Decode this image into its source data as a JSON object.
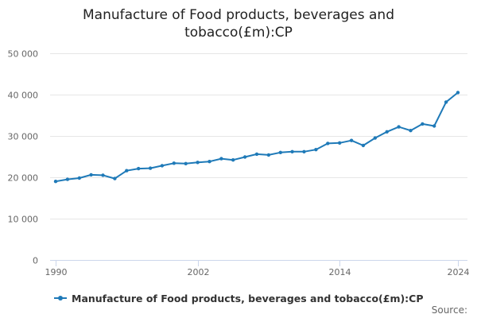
{
  "chart_data": {
    "type": "line",
    "title": "Manufacture of Food products, beverages and tobacco(£m):CP",
    "xlabel": "",
    "ylabel": "",
    "xlim": [
      1990,
      2024
    ],
    "ylim": [
      0,
      50000
    ],
    "x_ticks": [
      1990,
      2002,
      2014,
      2024
    ],
    "x_tick_labels": [
      "1990",
      "2002",
      "2014",
      "2024"
    ],
    "y_ticks": [
      0,
      10000,
      20000,
      30000,
      40000,
      50000
    ],
    "y_tick_labels": [
      "0",
      "10 000",
      "20 000",
      "30 000",
      "40 000",
      "50 000"
    ],
    "grid": true,
    "legend_position": "bottom",
    "series": [
      {
        "name": "Manufacture of Food products, beverages and tobacco(£m):CP",
        "color": "#1f7ab8",
        "x": [
          1990,
          1991,
          1992,
          1993,
          1994,
          1995,
          1996,
          1997,
          1998,
          1999,
          2000,
          2001,
          2002,
          2003,
          2004,
          2005,
          2006,
          2007,
          2008,
          2009,
          2010,
          2011,
          2012,
          2013,
          2014,
          2015,
          2016,
          2017,
          2018,
          2019,
          2020,
          2021,
          2022,
          2023,
          2024
        ],
        "values": [
          19000,
          19500,
          19800,
          20600,
          20500,
          19700,
          21600,
          22100,
          22200,
          22800,
          23400,
          23300,
          23600,
          23800,
          24500,
          24200,
          24900,
          25600,
          25400,
          26000,
          26200,
          26200,
          26700,
          28200,
          28300,
          28900,
          27700,
          29500,
          31000,
          32200,
          31300,
          32900,
          32400,
          38200,
          40500
        ]
      }
    ]
  },
  "legend": {
    "label": "Manufacture of Food products, beverages and tobacco(£m):CP",
    "color": "#1f7ab8"
  },
  "credits": {
    "label": "Source:"
  }
}
